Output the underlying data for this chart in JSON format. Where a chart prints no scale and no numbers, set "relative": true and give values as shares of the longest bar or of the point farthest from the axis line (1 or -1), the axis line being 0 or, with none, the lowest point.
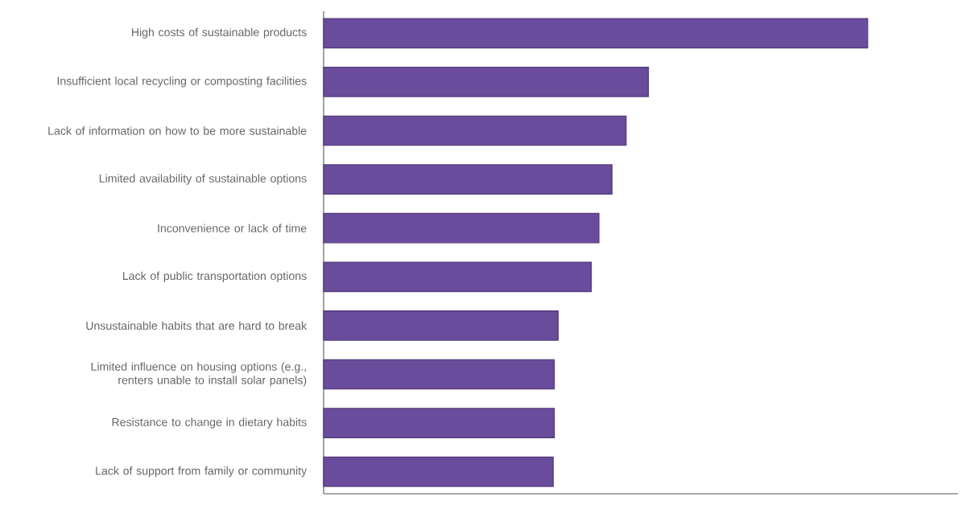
{
  "chart_data": {
    "type": "bar",
    "orientation": "horizontal",
    "relative": true,
    "color": "#6a4c9c",
    "categories": [
      "High costs of sustainable products",
      "Insufficient local recycling or composting facilities",
      "Lack of information on how to be more sustainable",
      "Limited availability of sustainable options",
      "Inconvenience or lack of time",
      "Lack of public transportation options",
      "Unsustainable habits that are hard to break",
      "Limited influence on housing options (e.g., renters unable to install solar panels)",
      "Resistance to change in dietary habits",
      "Lack of support from family or community"
    ],
    "values": [
      1,
      0.597,
      0.556,
      0.53,
      0.506,
      0.492,
      0.431,
      0.424,
      0.424,
      0.422
    ]
  }
}
